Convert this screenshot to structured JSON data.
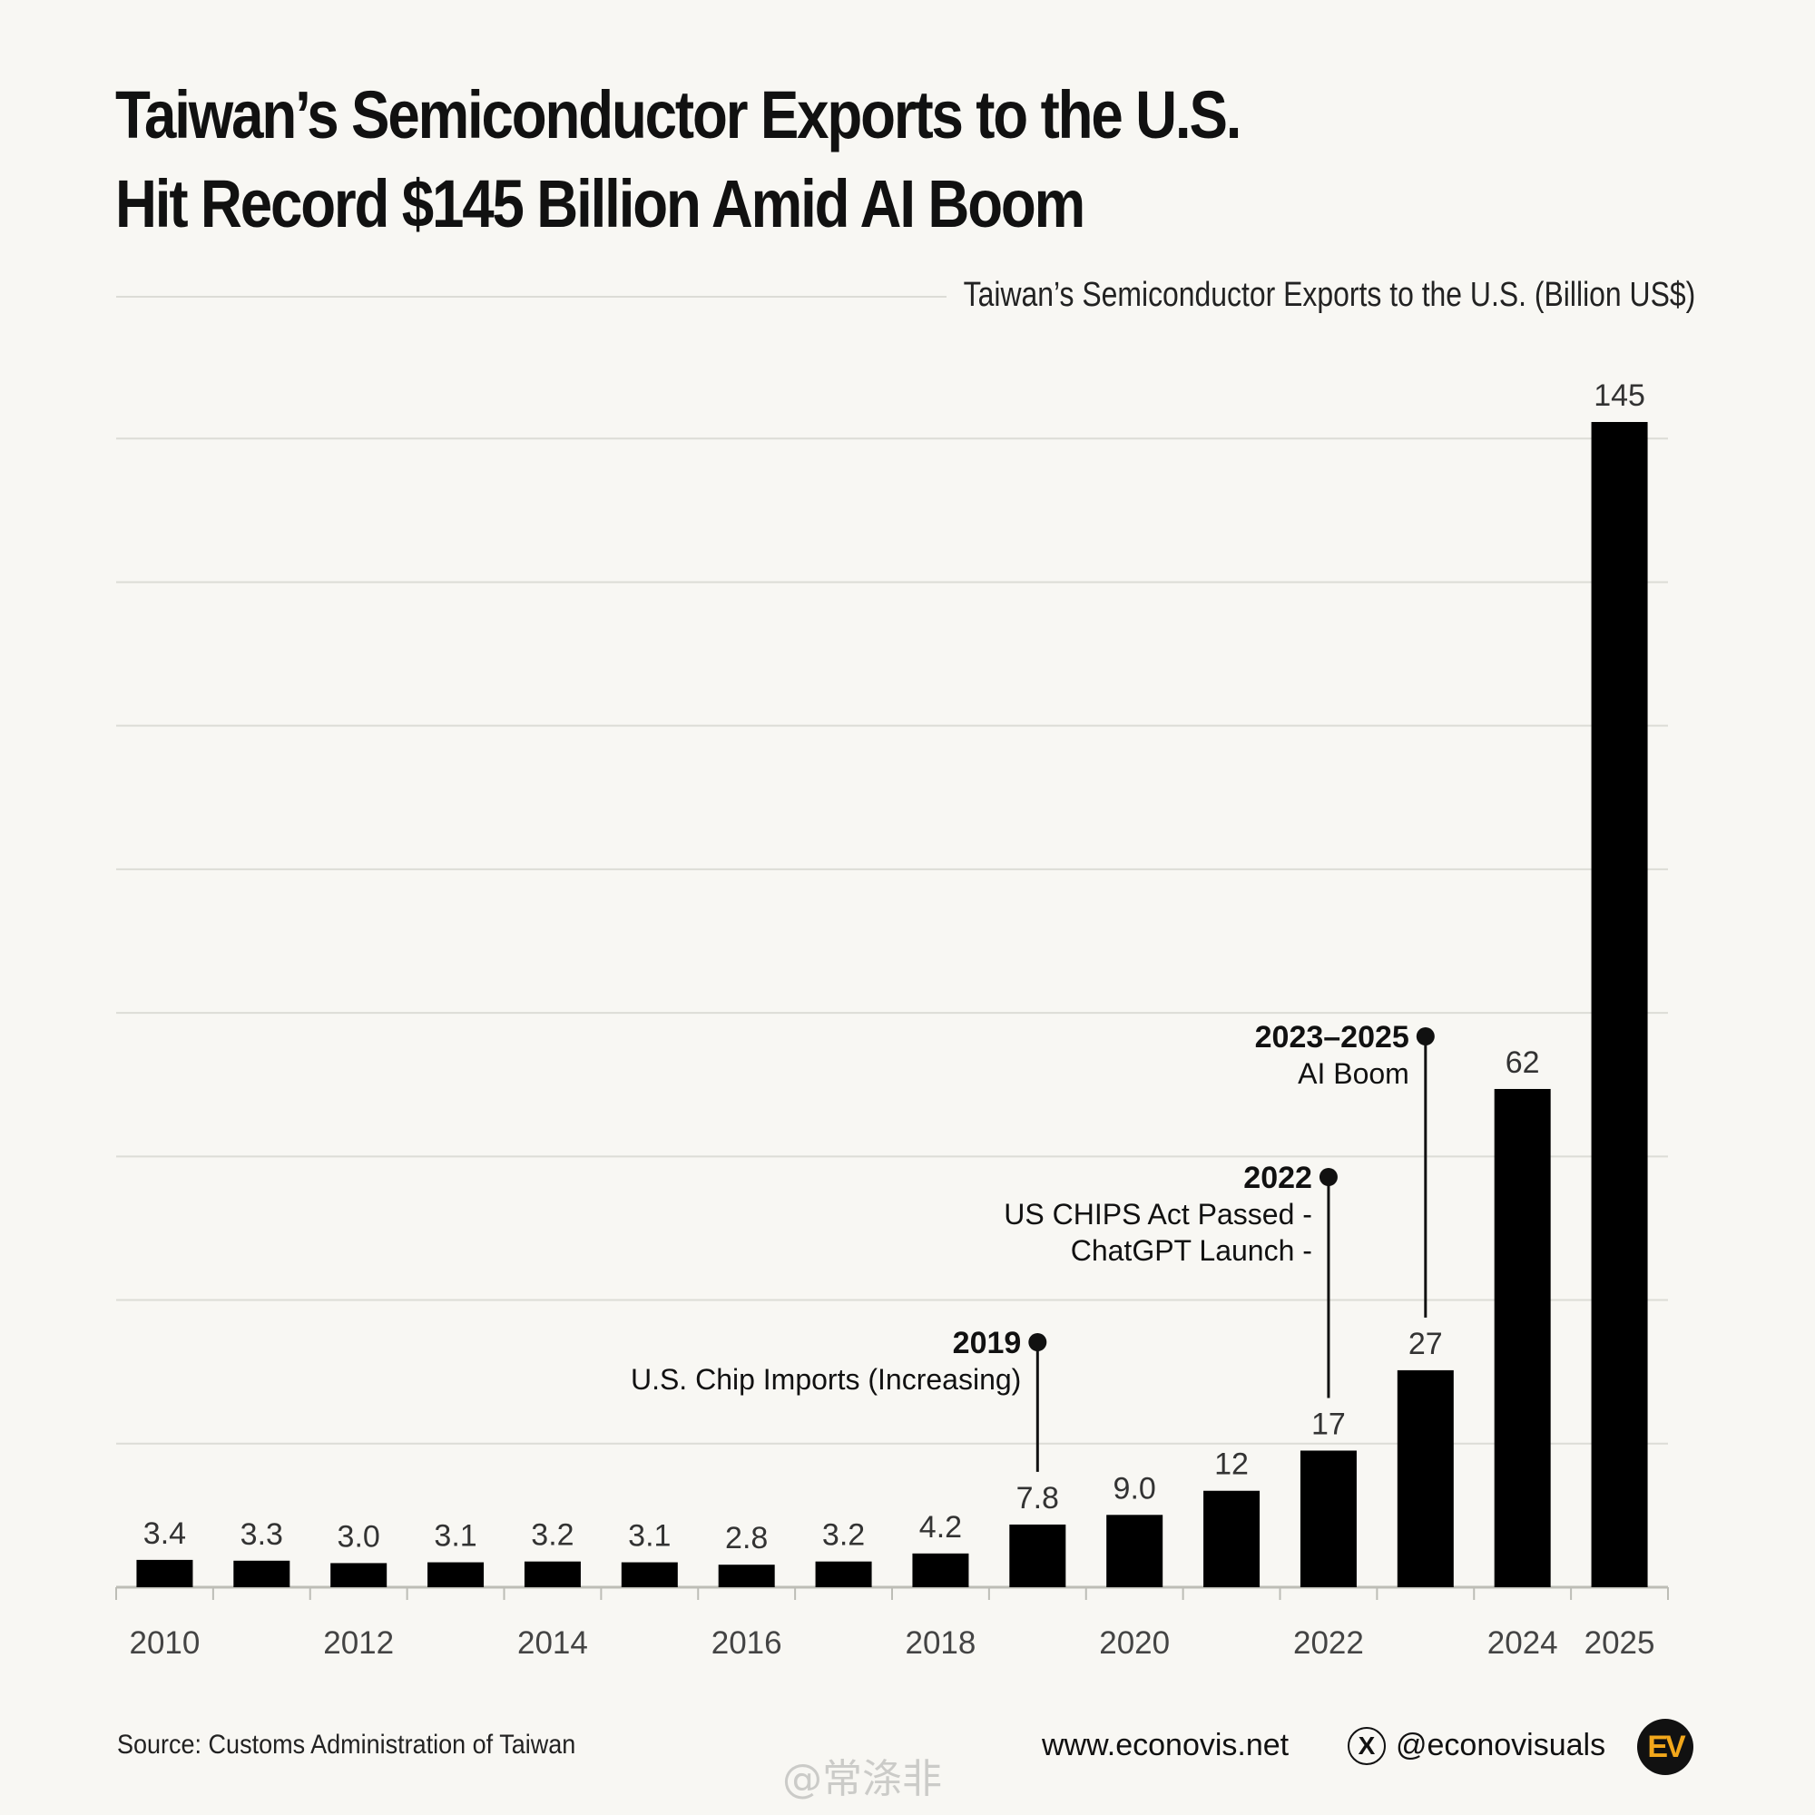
{
  "title_lines": [
    "Taiwan’s Semiconductor Exports to the U.S.",
    "Hit Record $145 Billion Amid AI Boom"
  ],
  "chart_data": {
    "type": "bar",
    "title": "Taiwan’s Semiconductor Exports to the U.S.",
    "subtitle": "Taiwan’s Semiconductor Exports to the U.S. (Billion US$)",
    "ylabel": "Billion US$",
    "xlabel": "",
    "categories": [
      "2010",
      "2011",
      "2012",
      "2013",
      "2014",
      "2015",
      "2016",
      "2017",
      "2018",
      "2019",
      "2020",
      "2021",
      "2022",
      "2023",
      "2024",
      "2025"
    ],
    "values": [
      3.4,
      3.3,
      3.0,
      3.1,
      3.2,
      3.1,
      2.8,
      3.2,
      4.2,
      7.8,
      9.0,
      12,
      17,
      27,
      62,
      145
    ],
    "value_labels": [
      "3.4",
      "3.3",
      "3.0",
      "3.1",
      "3.2",
      "3.1",
      "2.8",
      "3.2",
      "4.2",
      "7.8",
      "9.0",
      "12",
      "17",
      "27",
      "62",
      "145"
    ],
    "x_tick_labels": [
      "2010",
      "",
      "2012",
      "",
      "2014",
      "",
      "2016",
      "",
      "2018",
      "",
      "2020",
      "",
      "2022",
      "",
      "2024",
      "2025"
    ],
    "ylim": [
      0,
      145
    ],
    "grid": true,
    "bar_color": "#000000",
    "annotations": [
      {
        "year_index": 9,
        "title": "2019",
        "lines": [
          "U.S. Chip Imports (Increasing)"
        ]
      },
      {
        "year_index": 12,
        "title": "2022",
        "lines": [
          "US CHIPS Act Passed -",
          "ChatGPT Launch -"
        ]
      },
      {
        "year_index": 13,
        "title": "2023–2025",
        "lines": [
          "AI Boom"
        ]
      }
    ]
  },
  "footer": {
    "source": "Source: Customs Administration of Taiwan",
    "website": "www.econovis.net",
    "x_icon": "X",
    "handle": "@econovisuals",
    "logo": "EV",
    "watermark": "@常涤非"
  },
  "colors": {
    "background": "#f8f7f3",
    "bar": "#000000",
    "grid": "#dcdcd6",
    "logo_accent": "#f2a71b"
  }
}
